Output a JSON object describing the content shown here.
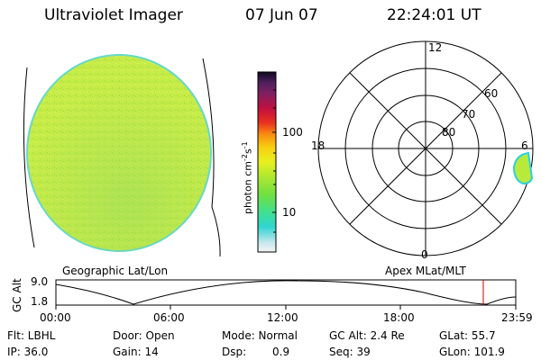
{
  "header": {
    "instrument": "Ultraviolet Imager",
    "date": "07 Jun 07",
    "time": "22:24:01 UT"
  },
  "colorbar": {
    "unit_label": "photon cm",
    "unit_sup1": "-2",
    "unit_mid": "s",
    "unit_sup2": "-1",
    "tick_high": "100",
    "tick_low": "10"
  },
  "polar_plot": {
    "mlt_top": "12",
    "mlt_left": "18",
    "mlt_right": "6",
    "mlt_bottom": "0",
    "lat_60": "60",
    "lat_70": "70",
    "lat_80": "80"
  },
  "captions": {
    "left": "Geographic Lat/Lon",
    "right": "Apex MLat/MLT"
  },
  "altitude_strip": {
    "axis_label": "GC Alt",
    "y_top": "9.0",
    "y_bottom": "1.8",
    "x_ticks": [
      "00:00",
      "06:00",
      "12:00",
      "18:00",
      "23:59"
    ]
  },
  "info": {
    "flt": "Flt: LBHL",
    "ip": "IP: 36.0",
    "door": "Door: Open",
    "gain": "Gain: 14",
    "mode": "Mode: Normal",
    "dsp_label": "Dsp:",
    "dsp_value": "0.9",
    "gc_alt": "GC Alt: 2.4 Re",
    "seq": "Seq: 39",
    "glat": "GLat:  55.7",
    "glon": "GLon: 101.9"
  },
  "colors": {
    "disk_fill": "#c9ee45",
    "disk_edge": "#66d9c8",
    "current_time_marker": "#cc0000"
  }
}
